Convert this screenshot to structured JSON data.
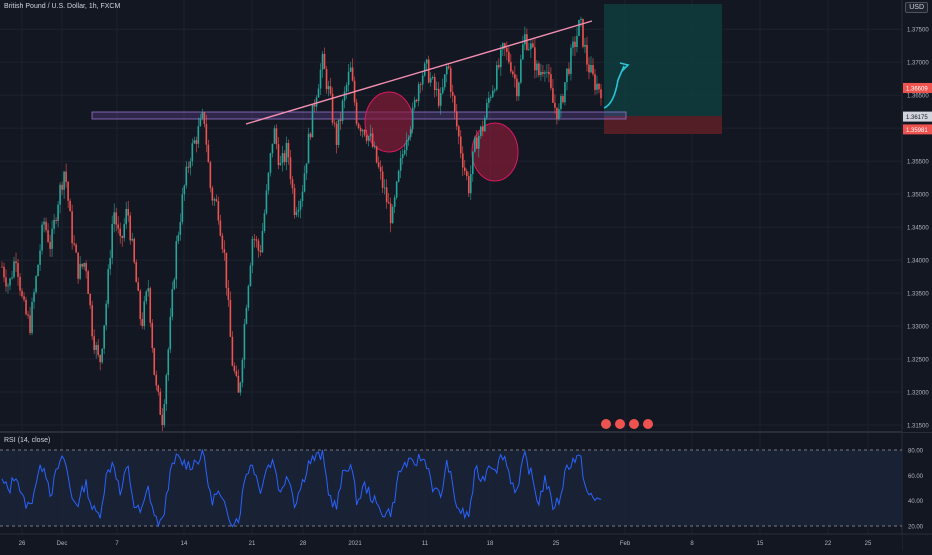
{
  "header": {
    "symbol_title": "British Pound / U.S. Dollar, 1h, FXCM",
    "currency_button": "USD"
  },
  "rsi": {
    "label": "RSI (14, close)",
    "upper_band": 80,
    "lower_band": 20,
    "ticks": [
      "80.00",
      "60.00",
      "40.00",
      "20.00"
    ]
  },
  "colors": {
    "background": "#131722",
    "grid": "#1e222d",
    "bull": "#26a69a",
    "bear": "#ef5350",
    "trendline": "#f48fb1",
    "zone": "#7e57c2",
    "ellipse_fill": "#8e1b3b",
    "target_zone": "#0f3b3c",
    "stop_zone": "#5b1f26",
    "rsi_line": "#2962ff",
    "arrow": "#26c6da"
  },
  "chart_data": {
    "type": "candlestick",
    "price_axis": {
      "ylim": [
        1.314,
        1.382
      ],
      "ticks": [
        "1.37500",
        "1.37000",
        "1.36500",
        "1.36000",
        "1.35500",
        "1.35000",
        "1.34500",
        "1.34000",
        "1.33500",
        "1.33000",
        "1.32500",
        "1.32000",
        "1.31500"
      ],
      "markers": [
        {
          "label": "1.36609",
          "value": 1.36609,
          "color": "#ef5350"
        },
        {
          "label": "1.36175",
          "value": 1.36175,
          "color": "#d1d4dc"
        },
        {
          "label": "1.35981",
          "value": 1.35981,
          "color": "#ef5350"
        }
      ]
    },
    "time_axis": {
      "ticks": [
        "26",
        "Dec",
        "7",
        "14",
        "21",
        "28",
        "2021",
        "11",
        "18",
        "25",
        "Feb",
        "8",
        "15",
        "22",
        "25"
      ]
    },
    "series_path": [
      1.339,
      1.336,
      1.341,
      1.333,
      1.33,
      1.338,
      1.346,
      1.342,
      1.349,
      1.354,
      1.344,
      1.338,
      1.34,
      1.329,
      1.324,
      1.334,
      1.348,
      1.342,
      1.348,
      1.339,
      1.33,
      1.336,
      1.321,
      1.316,
      1.328,
      1.342,
      1.35,
      1.356,
      1.359,
      1.362,
      1.35,
      1.348,
      1.34,
      1.325,
      1.319,
      1.333,
      1.344,
      1.341,
      1.35,
      1.36,
      1.354,
      1.357,
      1.348,
      1.35,
      1.358,
      1.365,
      1.37,
      1.365,
      1.358,
      1.364,
      1.369,
      1.361,
      1.36,
      1.358,
      1.354,
      1.35,
      1.346,
      1.353,
      1.359,
      1.362,
      1.368,
      1.369,
      1.366,
      1.364,
      1.37,
      1.362,
      1.356,
      1.351,
      1.358,
      1.36,
      1.365,
      1.368,
      1.372,
      1.37,
      1.366,
      1.374,
      1.372,
      1.368,
      1.37,
      1.364,
      1.362,
      1.368,
      1.372,
      1.376,
      1.37,
      1.367,
      1.366
    ],
    "rsi_values": [
      55,
      48,
      62,
      40,
      35,
      58,
      70,
      45,
      66,
      74,
      42,
      38,
      55,
      33,
      28,
      60,
      72,
      44,
      68,
      36,
      30,
      50,
      25,
      22,
      58,
      74,
      70,
      68,
      72,
      76,
      40,
      46,
      34,
      24,
      26,
      62,
      70,
      48,
      66,
      72,
      44,
      64,
      38,
      52,
      70,
      74,
      76,
      44,
      34,
      62,
      70,
      38,
      52,
      44,
      34,
      30,
      32,
      62,
      70,
      68,
      74,
      70,
      48,
      44,
      72,
      40,
      30,
      28,
      64,
      56,
      70,
      66,
      78,
      58,
      46,
      76,
      60,
      38,
      58,
      36,
      40,
      66,
      72,
      74,
      46,
      40,
      42
    ]
  }
}
